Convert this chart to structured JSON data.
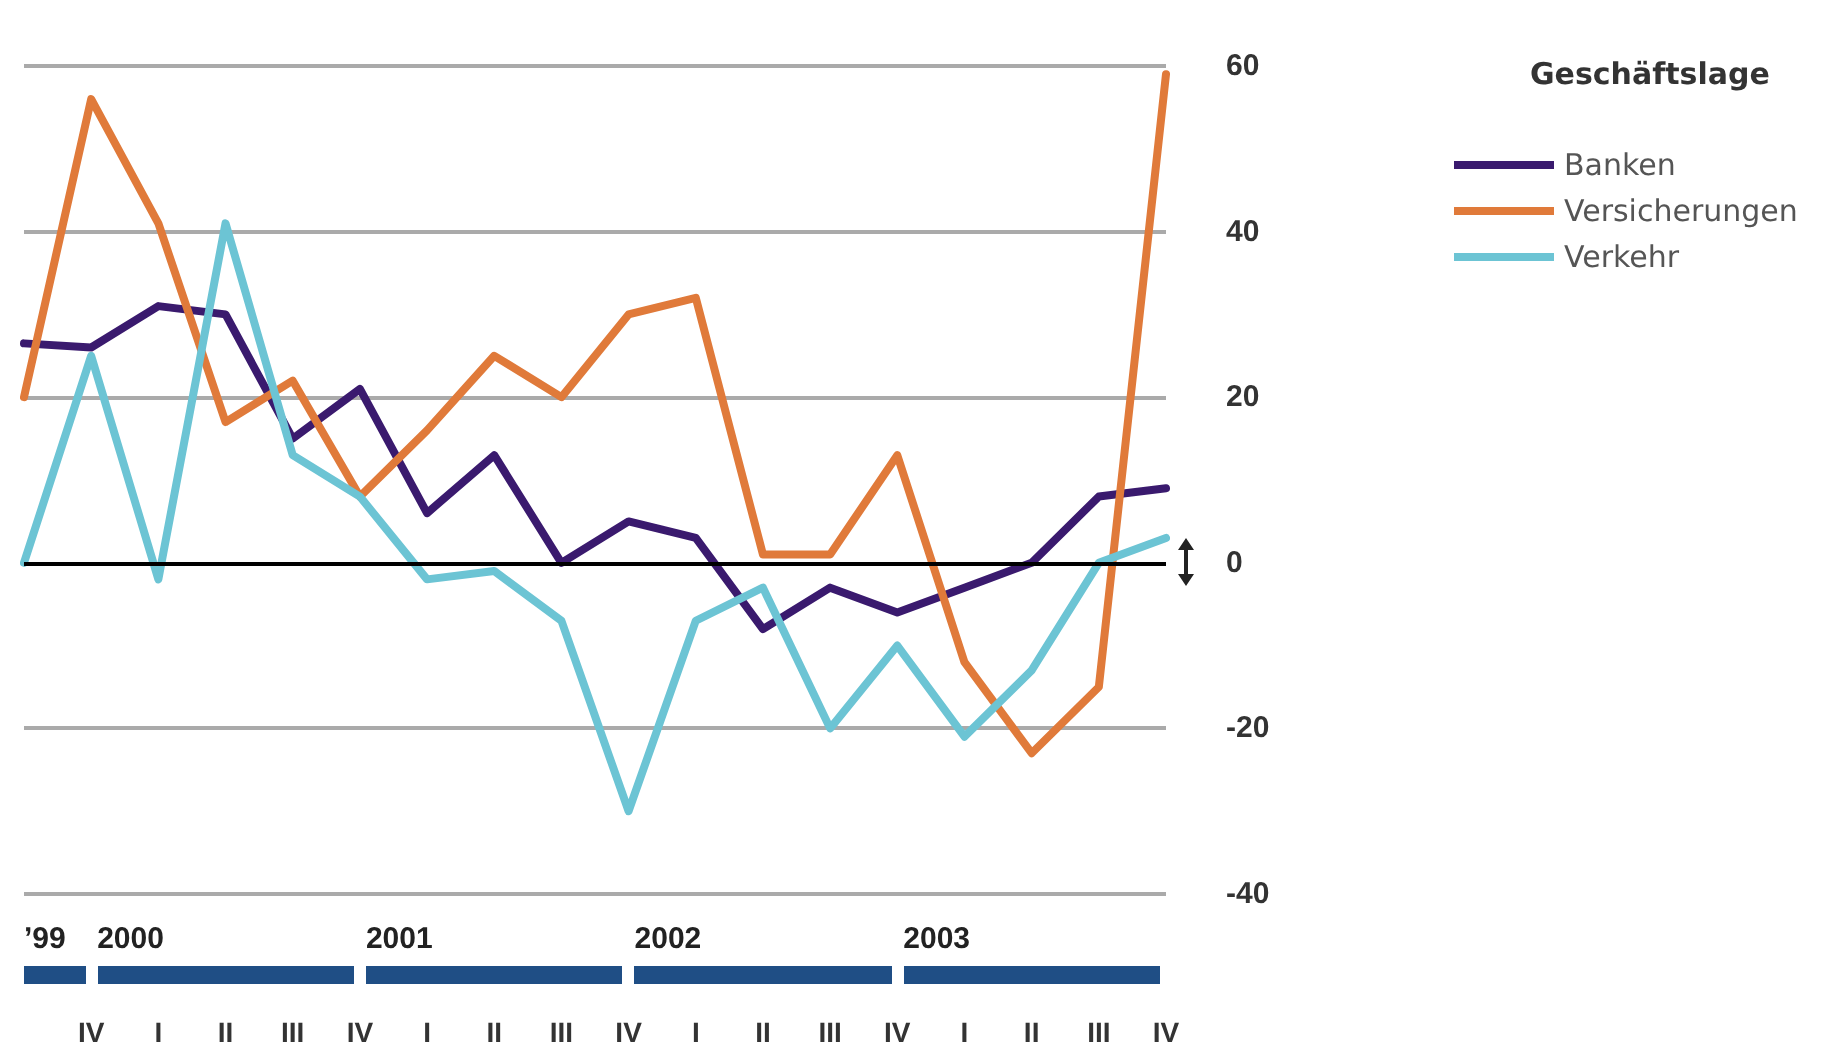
{
  "chart_data": {
    "type": "line",
    "legend_title": "Geschäftslage",
    "legend": "top right",
    "categories": [
      null,
      "IV",
      "I",
      "II",
      "III",
      "IV",
      "I",
      "II",
      "III",
      "IV",
      "I",
      "II",
      "III",
      "IV",
      "I",
      "II",
      "III",
      "IV"
    ],
    "series": [
      {
        "name": "Banken",
        "color": "#3a1a6e",
        "values": [
          26.5,
          26,
          31,
          30,
          15,
          21,
          6,
          13,
          0,
          5,
          3,
          -8,
          -3,
          -6,
          -3,
          0,
          8,
          9
        ]
      },
      {
        "name": "Versicherungen",
        "color": "#e07a3a",
        "values": [
          20,
          56,
          41,
          17,
          22,
          8,
          16,
          25,
          20,
          30,
          32,
          1,
          1,
          13,
          -12,
          -23,
          -15,
          59
        ]
      },
      {
        "name": "Verkehr",
        "color": "#6cc4d4",
        "values": [
          0,
          25,
          -2,
          41,
          13,
          8,
          -2,
          -1,
          -7,
          -30,
          -7,
          -3,
          -20,
          -10,
          -21,
          -13,
          0,
          3
        ]
      }
    ],
    "ylim": [
      -40,
      60
    ],
    "yticks": [
      -40,
      -20,
      0,
      20,
      40,
      60
    ],
    "grid": "y",
    "marker": "none",
    "line_style": "solid",
    "ref_lines": [
      {
        "axis": "y",
        "value": 0,
        "color": "#000000"
      }
    ],
    "annotations": [
      "’99",
      "2000",
      "2001",
      "2002",
      "2003"
    ]
  }
}
